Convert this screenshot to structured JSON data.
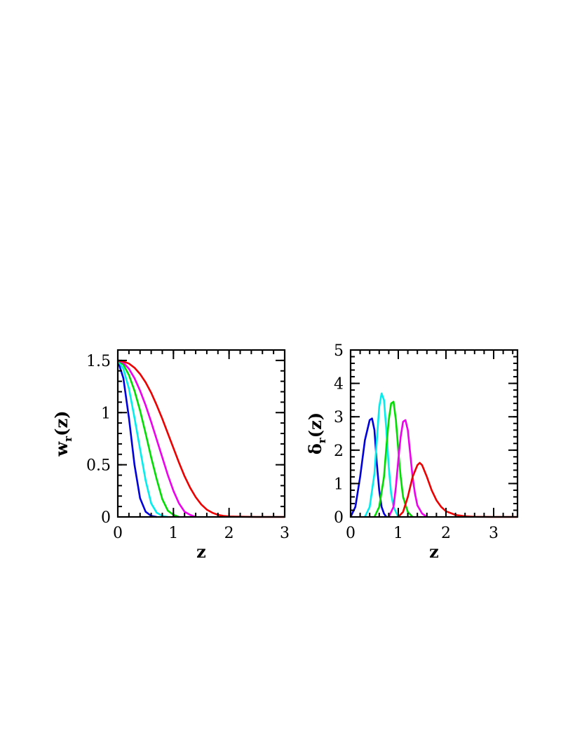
{
  "chart_data": [
    {
      "type": "line",
      "title": "",
      "xlabel": "z",
      "ylabel": {
        "main": "w",
        "sub": "r",
        "tail": "(z)"
      },
      "xlim": [
        0,
        3
      ],
      "ylim": [
        0,
        1.6
      ],
      "xticks": [
        0,
        1,
        2,
        3
      ],
      "xtick_labels": [
        "0",
        "1",
        "2",
        "3"
      ],
      "yticks": [
        0,
        0.5,
        1,
        1.5
      ],
      "ytick_labels": [
        "0",
        "0.5",
        "1",
        "1.5"
      ],
      "x_minor_step": 0.2,
      "y_minor_step": 0.1,
      "grid": false,
      "legend": "none",
      "series": [
        {
          "color": "#0000dd",
          "x": [
            0,
            0.1,
            0.2,
            0.3,
            0.4,
            0.5,
            0.6,
            0.7
          ],
          "y": [
            1.5,
            1.33,
            0.95,
            0.5,
            0.18,
            0.05,
            0.01,
            0
          ]
        },
        {
          "color": "#00eeee",
          "x": [
            0,
            0.1,
            0.2,
            0.3,
            0.4,
            0.5,
            0.6,
            0.7,
            0.8,
            0.9
          ],
          "y": [
            1.5,
            1.42,
            1.23,
            0.95,
            0.65,
            0.35,
            0.13,
            0.04,
            0.01,
            0
          ]
        },
        {
          "color": "#00dd00",
          "x": [
            0,
            0.1,
            0.2,
            0.3,
            0.4,
            0.5,
            0.6,
            0.7,
            0.8,
            0.9,
            1.0,
            1.1
          ],
          "y": [
            1.5,
            1.46,
            1.36,
            1.21,
            1.02,
            0.8,
            0.57,
            0.36,
            0.17,
            0.06,
            0.02,
            0
          ]
        },
        {
          "color": "#ee00ee",
          "x": [
            0,
            0.1,
            0.2,
            0.3,
            0.4,
            0.5,
            0.6,
            0.7,
            0.8,
            0.9,
            1.0,
            1.1,
            1.2,
            1.3,
            1.4
          ],
          "y": [
            1.5,
            1.48,
            1.42,
            1.33,
            1.21,
            1.07,
            0.91,
            0.74,
            0.57,
            0.4,
            0.25,
            0.13,
            0.05,
            0.02,
            0
          ]
        },
        {
          "color": "#ee0000",
          "x": [
            0,
            0.1,
            0.2,
            0.3,
            0.4,
            0.5,
            0.6,
            0.7,
            0.8,
            0.9,
            1.0,
            1.1,
            1.2,
            1.3,
            1.4,
            1.5,
            1.6,
            1.7,
            1.8,
            1.9,
            2.0,
            2.2,
            2.5,
            3.0
          ],
          "y": [
            1.5,
            1.49,
            1.47,
            1.43,
            1.37,
            1.29,
            1.19,
            1.07,
            0.94,
            0.8,
            0.66,
            0.52,
            0.39,
            0.28,
            0.19,
            0.12,
            0.07,
            0.04,
            0.02,
            0.01,
            0.005,
            0.002,
            0,
            0
          ]
        }
      ]
    },
    {
      "type": "line",
      "title": "",
      "xlabel": "z",
      "ylabel": {
        "main": "δ",
        "sub": "r",
        "tail": "(z)"
      },
      "xlim": [
        0,
        3.5
      ],
      "ylim": [
        0,
        5
      ],
      "xticks": [
        0,
        1,
        2,
        3
      ],
      "xtick_labels": [
        "0",
        "1",
        "2",
        "3"
      ],
      "yticks": [
        0,
        1,
        2,
        3,
        4,
        5
      ],
      "ytick_labels": [
        "0",
        "1",
        "2",
        "3",
        "4",
        "5"
      ],
      "x_minor_step": 0.2,
      "y_minor_step": 0.2,
      "grid": false,
      "legend": "none",
      "series": [
        {
          "color": "#0000dd",
          "x": [
            0,
            0.1,
            0.2,
            0.3,
            0.4,
            0.45,
            0.5,
            0.55,
            0.6,
            0.65,
            0.7,
            0.75
          ],
          "y": [
            0,
            0.3,
            1.2,
            2.3,
            2.9,
            2.95,
            2.6,
            1.6,
            0.8,
            0.3,
            0.1,
            0
          ]
        },
        {
          "color": "#00eeee",
          "x": [
            0.3,
            0.4,
            0.5,
            0.55,
            0.6,
            0.65,
            0.7,
            0.75,
            0.8,
            0.85,
            0.9,
            1.0
          ],
          "y": [
            0,
            0.3,
            1.3,
            2.3,
            3.3,
            3.7,
            3.5,
            2.6,
            1.5,
            0.7,
            0.3,
            0
          ]
        },
        {
          "color": "#00dd00",
          "x": [
            0.5,
            0.6,
            0.7,
            0.75,
            0.8,
            0.85,
            0.9,
            0.95,
            1.0,
            1.05,
            1.1,
            1.2,
            1.3
          ],
          "y": [
            0,
            0.3,
            1.2,
            2.1,
            2.9,
            3.4,
            3.45,
            2.9,
            2.0,
            1.2,
            0.6,
            0.15,
            0
          ]
        },
        {
          "color": "#ee00ee",
          "x": [
            0.8,
            0.9,
            0.95,
            1.0,
            1.05,
            1.1,
            1.15,
            1.2,
            1.25,
            1.3,
            1.35,
            1.4,
            1.5,
            1.6
          ],
          "y": [
            0,
            0.3,
            0.9,
            1.7,
            2.4,
            2.85,
            2.9,
            2.6,
            1.9,
            1.2,
            0.7,
            0.35,
            0.1,
            0
          ]
        },
        {
          "color": "#ee0000",
          "x": [
            1.0,
            1.1,
            1.2,
            1.3,
            1.4,
            1.45,
            1.5,
            1.6,
            1.7,
            1.8,
            1.9,
            2.0,
            2.2,
            2.4,
            2.6,
            3.0,
            3.5
          ],
          "y": [
            0,
            0.15,
            0.6,
            1.2,
            1.55,
            1.62,
            1.55,
            1.2,
            0.8,
            0.5,
            0.3,
            0.17,
            0.06,
            0.02,
            0.005,
            0,
            0
          ]
        }
      ]
    }
  ]
}
